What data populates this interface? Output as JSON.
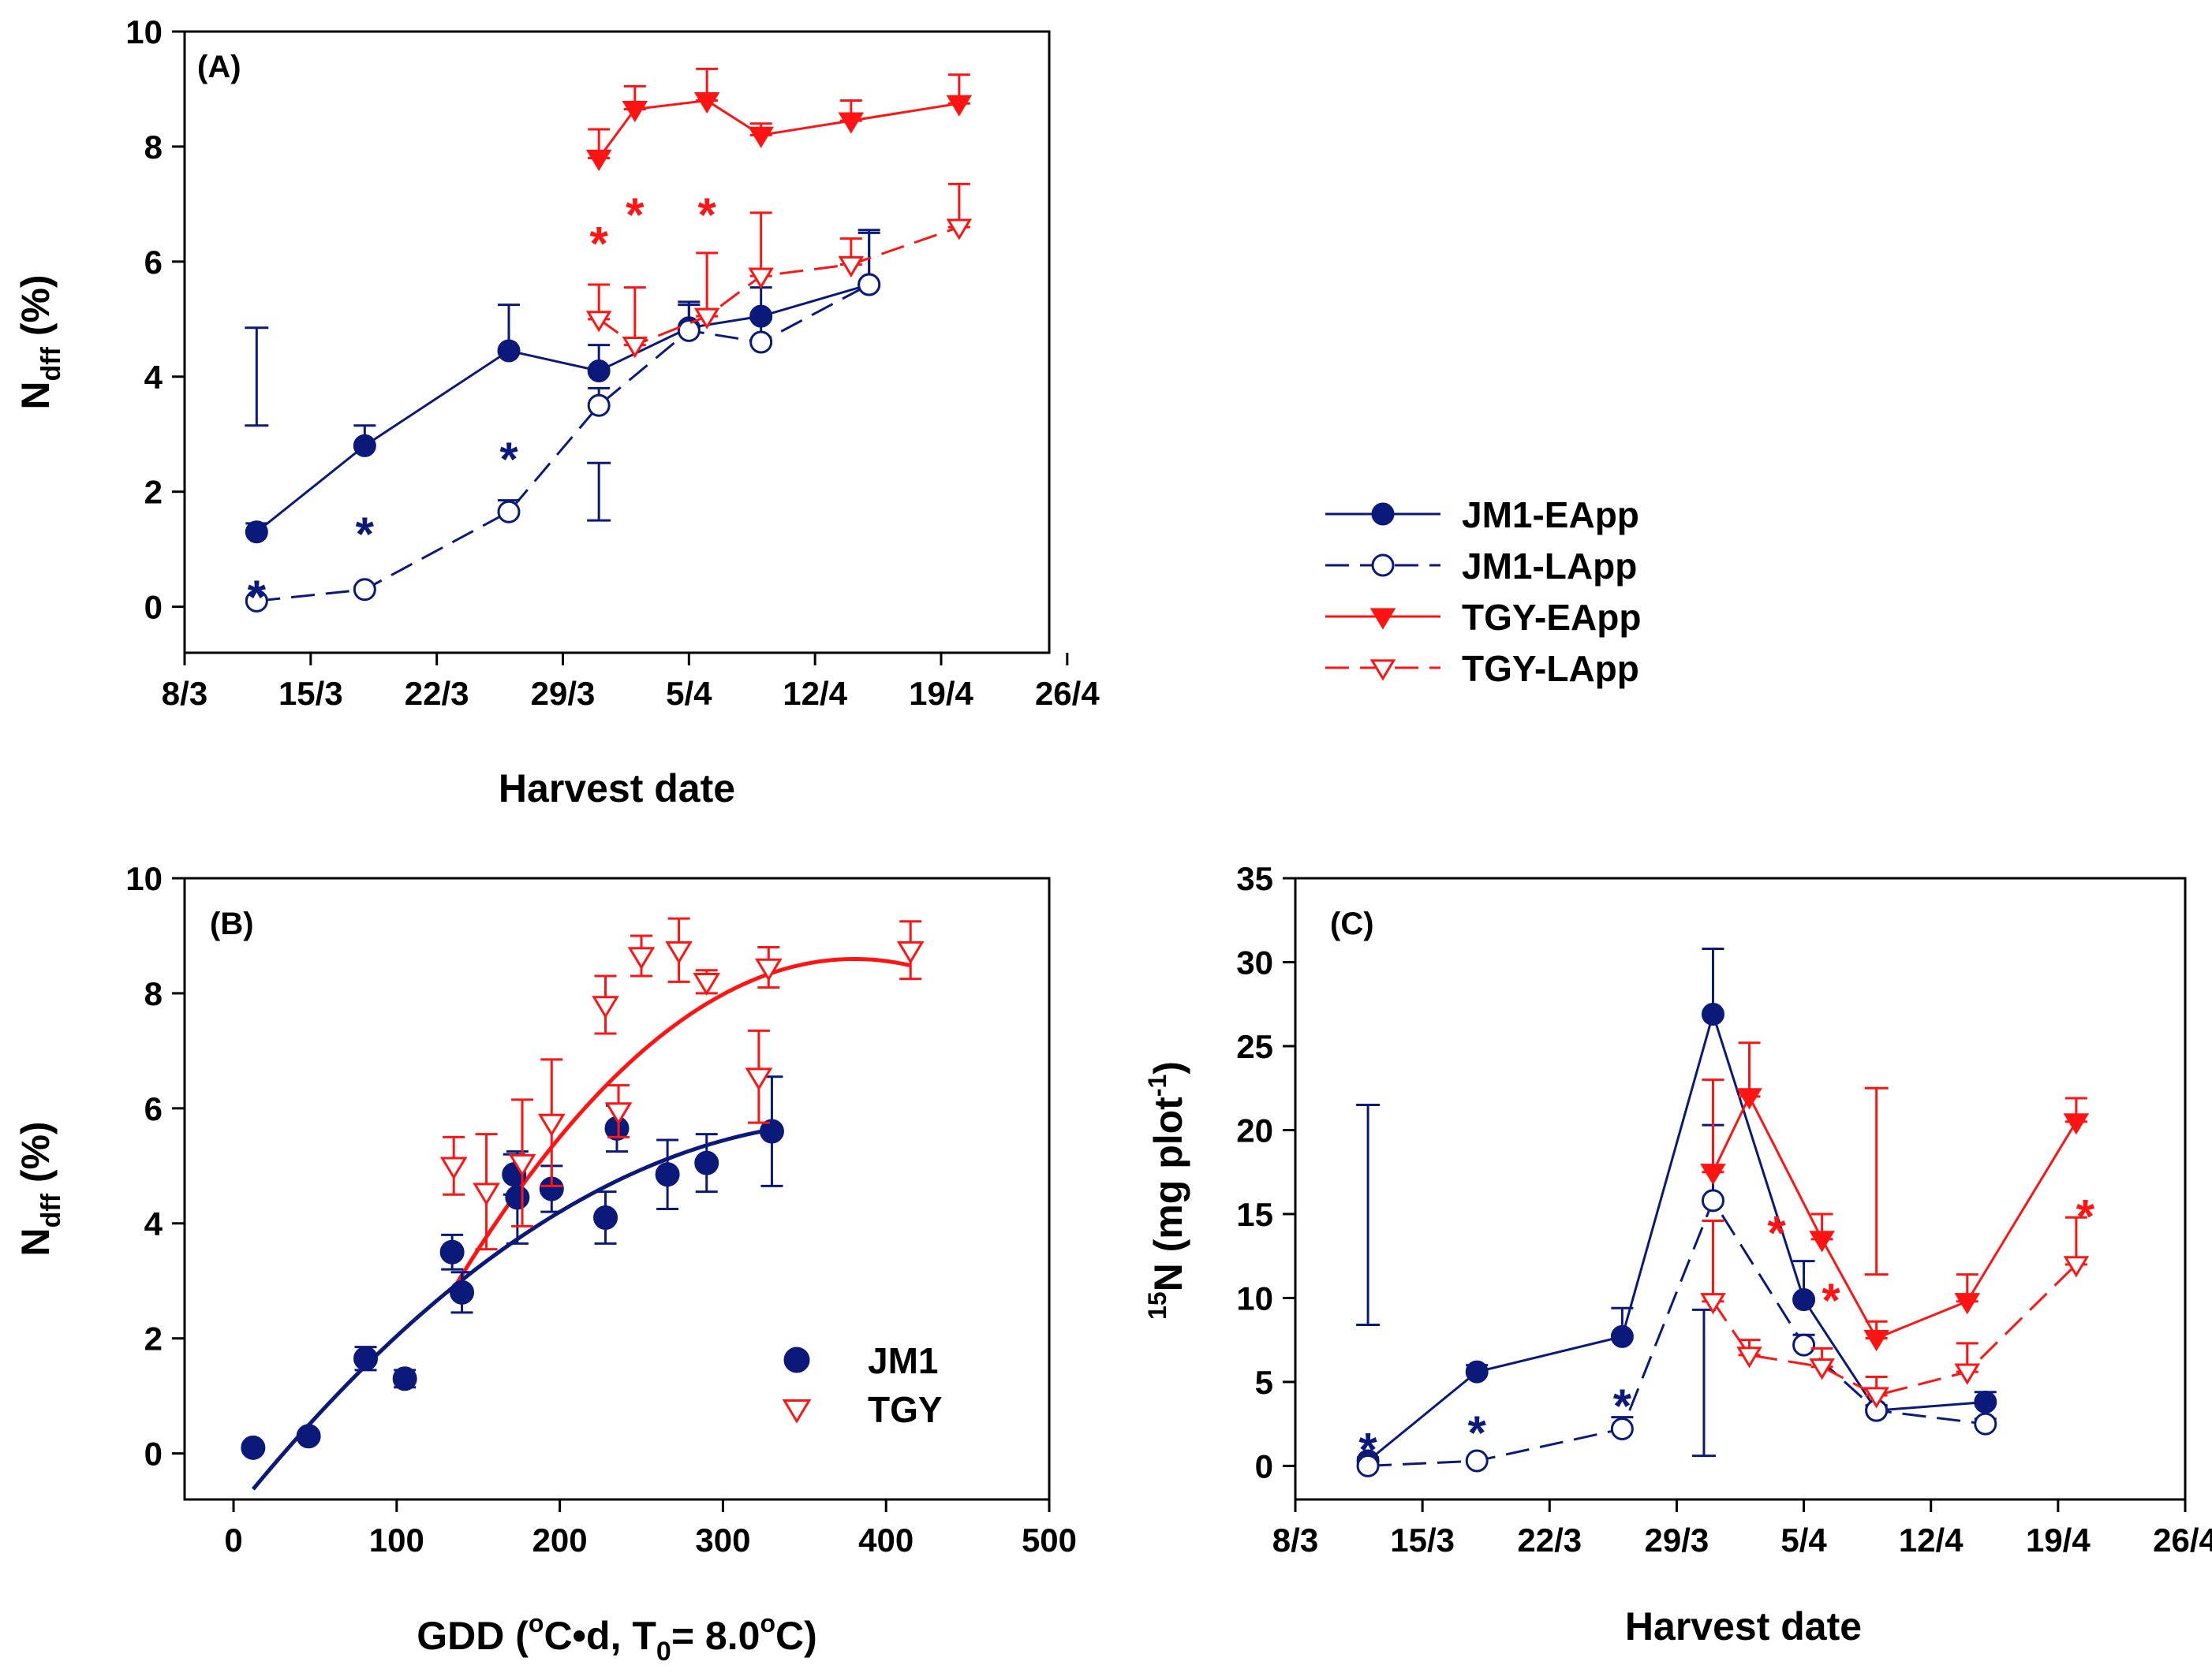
{
  "colors": {
    "blue": "#0b1a7a",
    "red": "#ff1414",
    "black": "#000000"
  },
  "legend": {
    "top": [
      {
        "label": "JM1-EApp",
        "color": "#0b1a7a",
        "marker": "circle",
        "filled": true,
        "dashed": false
      },
      {
        "label": "JM1-LApp",
        "color": "#0b1a7a",
        "marker": "circle",
        "filled": false,
        "dashed": true
      },
      {
        "label": "TGY-EApp",
        "color": "#ff1414",
        "marker": "triangle-down",
        "filled": true,
        "dashed": false
      },
      {
        "label": "TGY-LApp",
        "color": "#ff1414",
        "marker": "triangle-down",
        "filled": false,
        "dashed": true
      }
    ],
    "panel_b": [
      {
        "label": "JM1",
        "color": "#0b1a7a",
        "marker": "circle",
        "filled": true
      },
      {
        "label": "TGY",
        "color": "#ff1414",
        "marker": "triangle-down",
        "filled": false
      }
    ]
  },
  "chart_data": [
    {
      "panel": "(A)",
      "type": "line",
      "xlabel": "Harvest date",
      "ylabel_main": "N",
      "ylabel_sub": "dff",
      "ylabel_suffix": " (%)",
      "xlim": [
        8,
        56
      ],
      "ylim": [
        -0.8,
        10
      ],
      "xticks": [
        8,
        15,
        22,
        29,
        36,
        43,
        50,
        57
      ],
      "xticklabels": [
        "8/3",
        "15/3",
        "22/3",
        "29/3",
        "5/4",
        "12/4",
        "19/4",
        "26/4"
      ],
      "yticks": [
        0,
        2,
        4,
        6,
        8,
        10
      ],
      "yticklabels": [
        "0",
        "2",
        "4",
        "6",
        "8",
        "10"
      ],
      "series": [
        {
          "name": "JM1-EApp",
          "color": "blue",
          "marker": "circle",
          "filled": true,
          "dashed": false,
          "x": [
            12,
            18,
            26,
            31,
            36,
            40,
            46
          ],
          "y": [
            1.3,
            2.8,
            4.45,
            4.1,
            4.85,
            5.05,
            5.6
          ],
          "err": [
            0.15,
            0.35,
            0.8,
            0.45,
            0.4,
            0.5,
            0.95
          ]
        },
        {
          "name": "JM1-LApp",
          "color": "blue",
          "marker": "circle",
          "filled": false,
          "dashed": true,
          "x": [
            12,
            18,
            26,
            31,
            36,
            40,
            46
          ],
          "y": [
            0.1,
            0.3,
            1.65,
            3.5,
            4.8,
            4.6,
            5.6
          ],
          "err": [
            0.05,
            0.05,
            0.2,
            0.3,
            0.5,
            0.4,
            0.9
          ]
        },
        {
          "name": "TGY-EApp",
          "color": "red",
          "marker": "triangle-down",
          "filled": true,
          "dashed": false,
          "x": [
            31,
            33,
            37,
            40,
            45,
            51
          ],
          "y": [
            7.8,
            8.65,
            8.8,
            8.2,
            8.45,
            8.75
          ],
          "err": [
            0.5,
            0.4,
            0.55,
            0.2,
            0.35,
            0.5
          ]
        },
        {
          "name": "TGY-LApp",
          "color": "red",
          "marker": "triangle-down",
          "filled": false,
          "dashed": true,
          "x": [
            31,
            33,
            37,
            40,
            45,
            51
          ],
          "y": [
            5.0,
            4.55,
            5.05,
            5.75,
            5.95,
            6.6
          ],
          "err": [
            0.6,
            1.0,
            1.1,
            1.1,
            0.45,
            0.75
          ]
        }
      ],
      "standalone_bars": [
        {
          "x": 12,
          "low": 3.15,
          "high": 4.85,
          "color": "blue"
        },
        {
          "x": 31,
          "low": 1.5,
          "high": 2.5,
          "color": "blue"
        }
      ],
      "annotations": [
        {
          "text": "*",
          "x": 12,
          "y": 0.35,
          "color": "blue"
        },
        {
          "text": "*",
          "x": 18,
          "y": 1.45,
          "color": "blue"
        },
        {
          "text": "*",
          "x": 26,
          "y": 2.75,
          "color": "blue"
        },
        {
          "text": "*",
          "x": 31,
          "y": 6.5,
          "color": "red"
        },
        {
          "text": "*",
          "x": 33,
          "y": 7.0,
          "color": "red"
        },
        {
          "text": "*",
          "x": 37,
          "y": 7.0,
          "color": "red"
        }
      ]
    },
    {
      "panel": "(B)",
      "type": "scatter",
      "xlabel": "GDD (",
      "xlabel_parts": [
        "GDD (",
        "o",
        "C•d, T",
        "0",
        "= 8.0",
        "o",
        "C)"
      ],
      "ylabel_main": "N",
      "ylabel_sub": "dff",
      "ylabel_suffix": " (%)",
      "xlim": [
        -30,
        500
      ],
      "ylim": [
        -0.8,
        10
      ],
      "xticks": [
        0,
        100,
        200,
        300,
        400,
        500
      ],
      "xticklabels": [
        "0",
        "100",
        "200",
        "300",
        "400",
        "500"
      ],
      "yticks": [
        0,
        2,
        4,
        6,
        8,
        10
      ],
      "yticklabels": [
        "0",
        "2",
        "4",
        "6",
        "8",
        "10"
      ],
      "series": [
        {
          "name": "JM1",
          "color": "blue",
          "marker": "circle",
          "filled": true,
          "x": [
            12,
            46,
            81,
            105,
            134,
            140,
            172,
            174,
            195,
            228,
            235,
            266,
            290,
            330
          ],
          "y": [
            0.1,
            0.3,
            1.65,
            1.3,
            3.5,
            2.8,
            4.85,
            4.45,
            4.6,
            4.1,
            5.65,
            4.85,
            5.05,
            5.6
          ],
          "err": [
            0,
            0,
            0.2,
            0.15,
            0.3,
            0.35,
            0.35,
            0.8,
            0.4,
            0.45,
            0.4,
            0.6,
            0.5,
            0.95
          ]
        },
        {
          "name": "TGY",
          "color": "red",
          "marker": "triangle-down",
          "filled": false,
          "x": [
            135,
            155,
            177,
            195,
            228,
            236,
            250,
            273,
            290,
            322,
            328,
            415
          ],
          "y": [
            5.0,
            4.55,
            5.05,
            5.75,
            7.8,
            5.95,
            8.65,
            8.75,
            8.2,
            6.55,
            8.45,
            8.75
          ],
          "err": [
            0.5,
            1.0,
            1.1,
            1.1,
            0.5,
            0.45,
            0.35,
            0.55,
            0.2,
            0.8,
            0.35,
            0.5
          ]
        }
      ],
      "fits": [
        {
          "name": "JM1 fit",
          "color": "blue",
          "x": [
            12,
            330
          ],
          "coef": [
            -1.04,
            0.0354,
            -4.6e-05
          ]
        },
        {
          "name": "TGY fit",
          "color": "red",
          "x": [
            135,
            415
          ],
          "coef": [
            -5.16,
            0.0723,
            -9.5e-05
          ]
        }
      ]
    },
    {
      "panel": "(C)",
      "type": "line",
      "xlabel": "Harvest date",
      "ylabel_sup": "15",
      "ylabel_main": "N (mg plot",
      "ylabel_sup2": "-1",
      "ylabel_suffix": ")",
      "xlim": [
        8,
        57
      ],
      "ylim": [
        -2,
        35
      ],
      "xticks": [
        8,
        15,
        22,
        29,
        36,
        43,
        50,
        57
      ],
      "xticklabels": [
        "8/3",
        "15/3",
        "22/3",
        "29/3",
        "5/4",
        "12/4",
        "19/4",
        "26/4"
      ],
      "yticks": [
        0,
        5,
        10,
        15,
        20,
        25,
        30,
        35
      ],
      "yticklabels": [
        "0",
        "5",
        "10",
        "15",
        "20",
        "25",
        "30",
        "35"
      ],
      "series": [
        {
          "name": "JM1-EApp",
          "color": "blue",
          "marker": "circle",
          "filled": true,
          "dashed": false,
          "x": [
            12,
            18,
            26,
            31,
            36,
            40,
            46
          ],
          "y": [
            0.3,
            5.6,
            7.7,
            26.9,
            9.9,
            3.3,
            3.8
          ],
          "err": [
            0.2,
            0.4,
            1.7,
            3.9,
            2.3,
            0.3,
            0.6
          ]
        },
        {
          "name": "JM1-LApp",
          "color": "blue",
          "marker": "circle",
          "filled": false,
          "dashed": true,
          "x": [
            12,
            18,
            26,
            31,
            36,
            40,
            46
          ],
          "y": [
            0.0,
            0.3,
            2.2,
            15.8,
            7.2,
            3.3,
            2.5
          ],
          "err": [
            0.05,
            0.1,
            0.7,
            4.5,
            0.6,
            0.3,
            0.3
          ]
        },
        {
          "name": "TGY-EApp",
          "color": "red",
          "marker": "triangle-down",
          "filled": true,
          "dashed": false,
          "x": [
            31,
            33,
            37,
            40,
            45,
            51
          ],
          "y": [
            17.5,
            22.0,
            13.5,
            7.6,
            9.8,
            20.5
          ],
          "err": [
            5.5,
            3.2,
            1.5,
            1.0,
            1.6,
            1.4
          ]
        },
        {
          "name": "TGY-LApp",
          "color": "red",
          "marker": "triangle-down",
          "filled": false,
          "dashed": true,
          "x": [
            31,
            33,
            37,
            40,
            45,
            51
          ],
          "y": [
            9.8,
            6.6,
            5.9,
            4.2,
            5.6,
            12.0
          ],
          "err": [
            4.8,
            0.9,
            1.1,
            1.1,
            1.7,
            2.8
          ]
        }
      ],
      "standalone_bars": [
        {
          "x": 12,
          "low": 8.4,
          "high": 21.5,
          "color": "blue"
        },
        {
          "x": 30.5,
          "low": 0.6,
          "high": 9.3,
          "color": "blue"
        },
        {
          "x": 40,
          "low": 11.4,
          "high": 22.5,
          "color": "red"
        }
      ],
      "annotations": [
        {
          "text": "*",
          "x": 12,
          "y": 1.6,
          "color": "blue"
        },
        {
          "text": "*",
          "x": 18,
          "y": 2.6,
          "color": "blue"
        },
        {
          "text": "*",
          "x": 26,
          "y": 4.2,
          "color": "blue"
        },
        {
          "text": "*",
          "x": 34.5,
          "y": 14.5,
          "color": "red"
        },
        {
          "text": "*",
          "x": 37.5,
          "y": 10.5,
          "color": "red"
        },
        {
          "text": "*",
          "x": 51.5,
          "y": 15.5,
          "color": "red"
        }
      ]
    }
  ]
}
